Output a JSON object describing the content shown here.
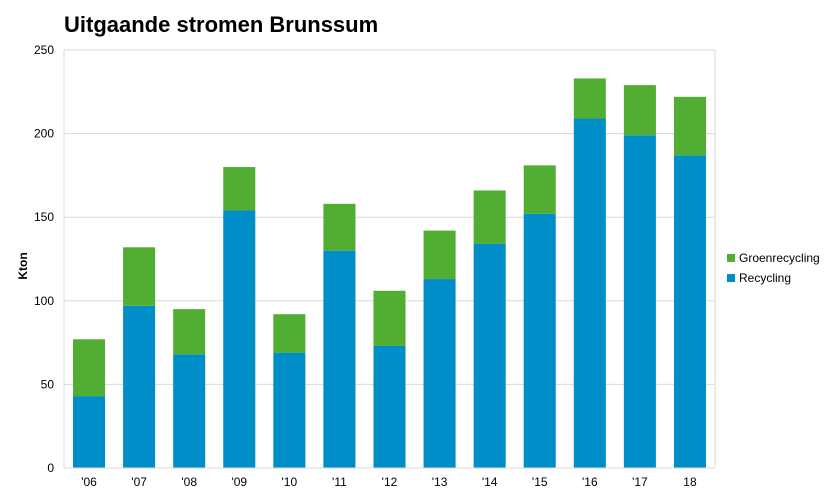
{
  "chart_data": {
    "type": "bar",
    "stacked": true,
    "title": "Uitgaande stromen Brunssum",
    "xlabel": "",
    "ylabel": "Kton",
    "ylim": [
      0,
      250
    ],
    "yticks": [
      0,
      50,
      100,
      150,
      200,
      250
    ],
    "grid": true,
    "legend_position": "right",
    "categories": [
      "'06",
      "'07",
      "'08",
      "'09",
      "'10",
      "'11",
      "'12",
      "'13",
      "'14",
      "'15",
      "'16",
      "'17",
      "18"
    ],
    "series": [
      {
        "name": "Recycling",
        "color": "#008ec8",
        "values": [
          43,
          97,
          68,
          154,
          69,
          130,
          73,
          113,
          134,
          152,
          209,
          199,
          187
        ]
      },
      {
        "name": "Groenrecycling",
        "color": "#52ae32",
        "values": [
          34,
          35,
          27,
          26,
          23,
          28,
          33,
          29,
          32,
          29,
          24,
          30,
          35
        ]
      }
    ],
    "legend_order": [
      "Groenrecycling",
      "Recycling"
    ]
  }
}
